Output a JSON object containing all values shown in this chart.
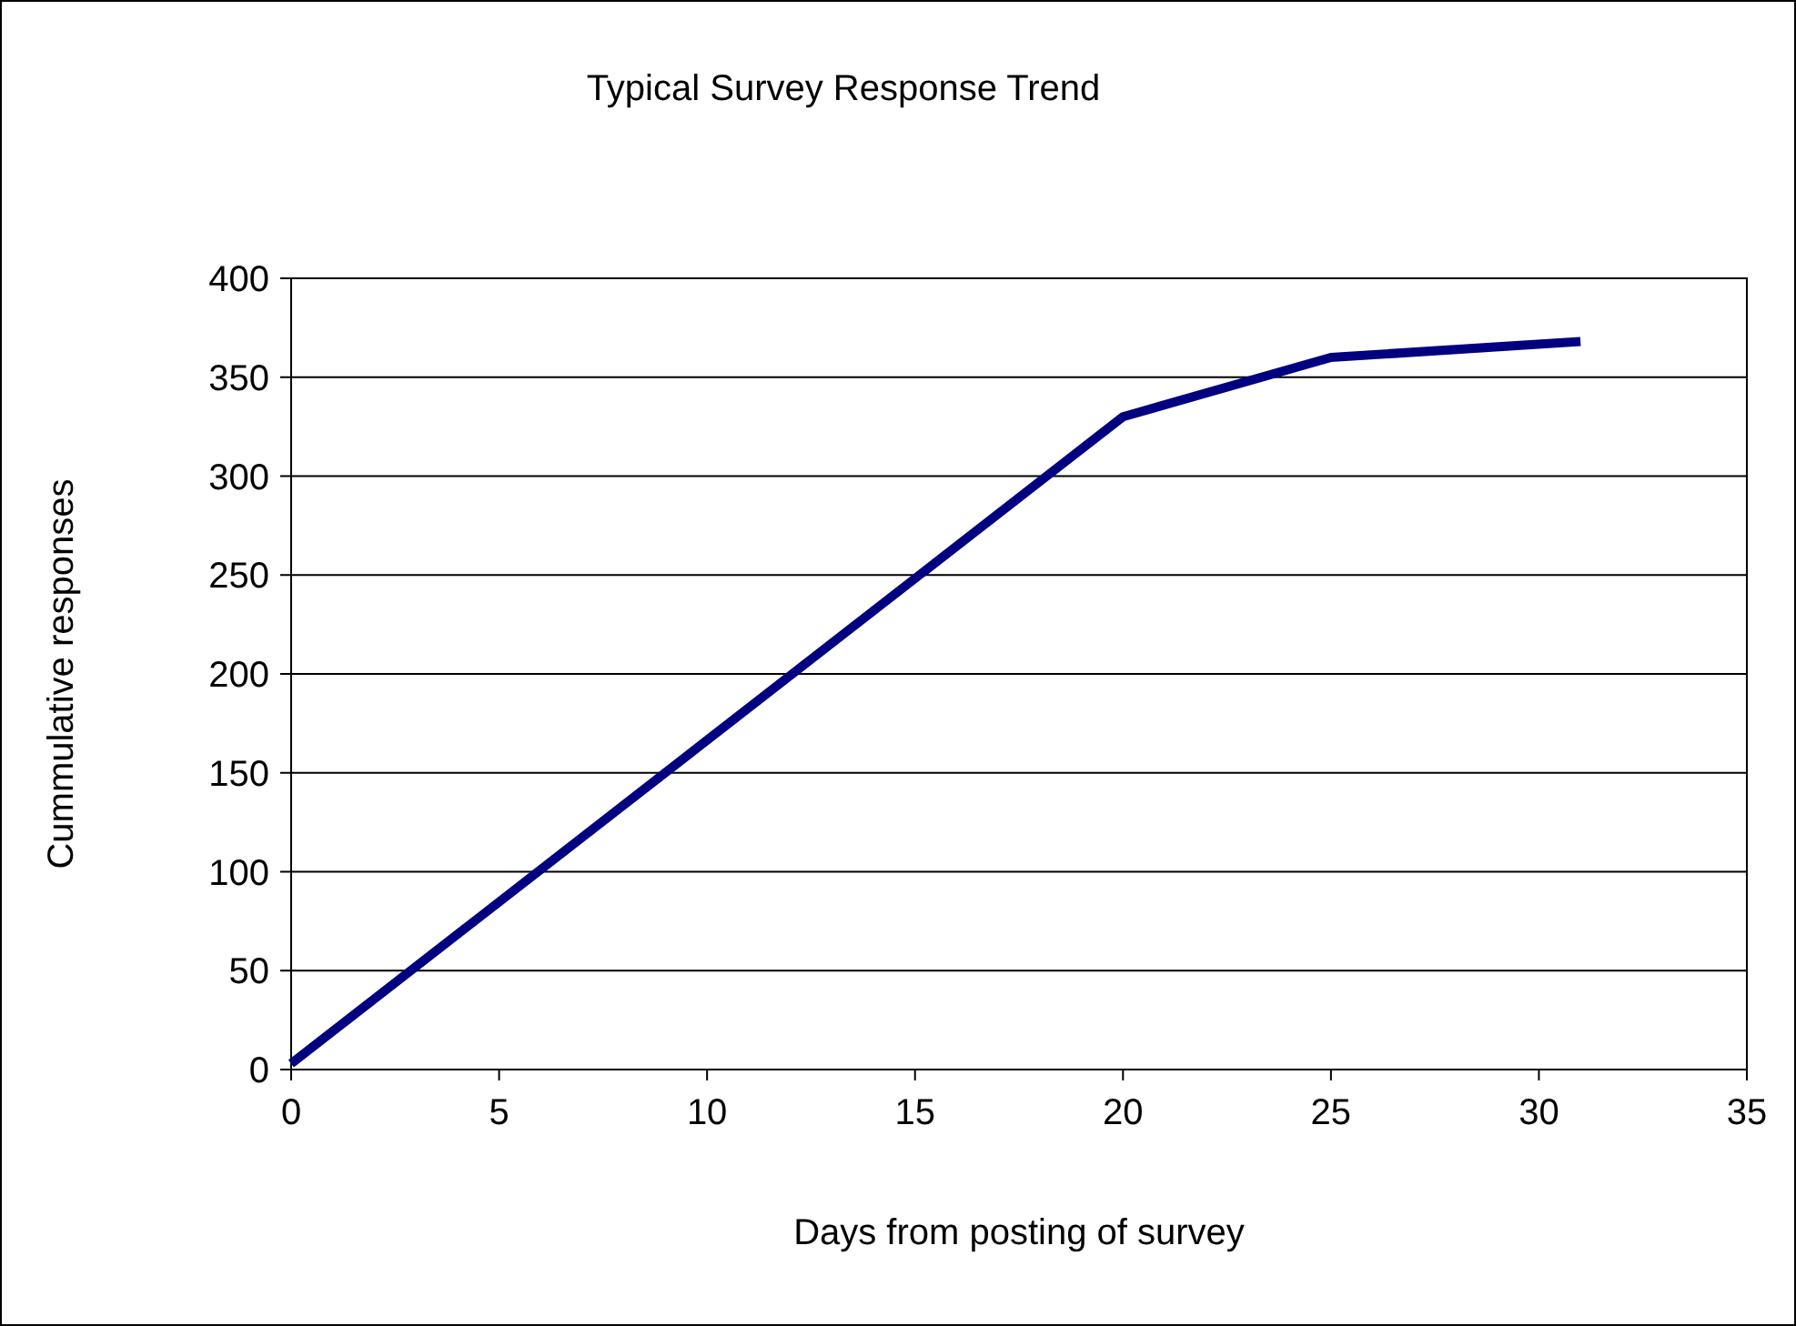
{
  "chart_data": {
    "type": "line",
    "title": "Typical Survey Response Trend",
    "xlabel": "Days from posting of survey",
    "ylabel": "Cummulative responses",
    "x": [
      0,
      20,
      25,
      31
    ],
    "series": [
      {
        "color": "#000080",
        "values": [
          3,
          330,
          360,
          368
        ]
      }
    ],
    "xlim": [
      0,
      35
    ],
    "xticks": [
      0,
      5,
      10,
      15,
      20,
      25,
      30,
      35
    ],
    "ylim": [
      0,
      400
    ],
    "yticks": [
      0,
      50,
      100,
      150,
      200,
      250,
      300,
      350,
      400
    ],
    "grid": "y",
    "marker": "none",
    "line_style": "solid"
  }
}
